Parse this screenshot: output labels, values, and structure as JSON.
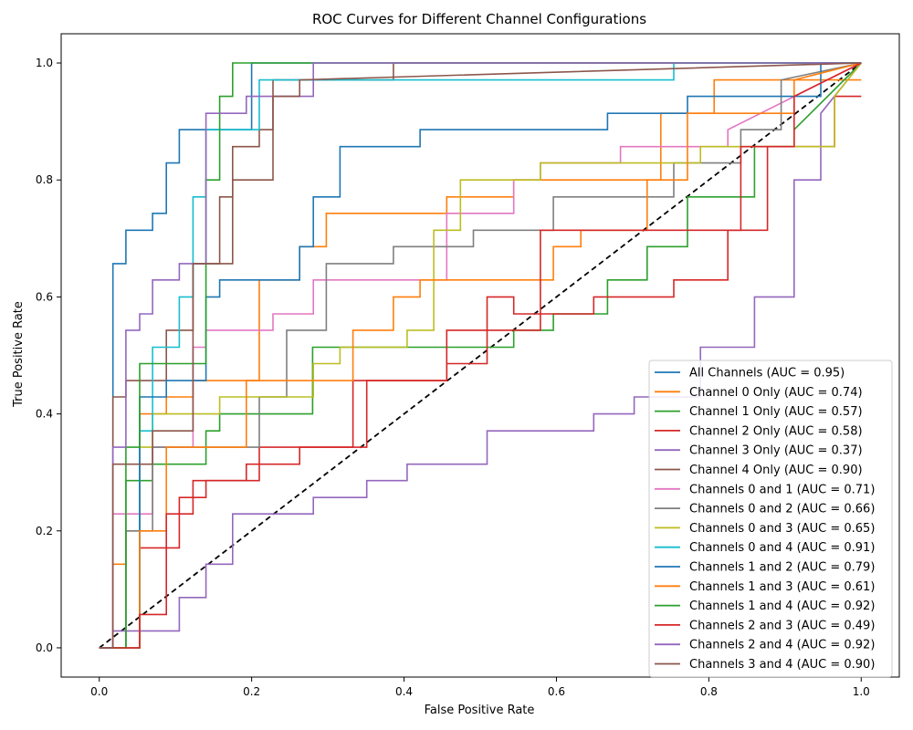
{
  "chart_data": {
    "type": "line",
    "title": "ROC Curves for Different Channel Configurations",
    "xlabel": "False Positive Rate",
    "ylabel": "True Positive Rate",
    "xlim": [
      -0.05,
      1.05
    ],
    "ylim": [
      -0.05,
      1.05
    ],
    "xticks": [
      "0.0",
      "0.2",
      "0.4",
      "0.6",
      "0.8",
      "1.0"
    ],
    "yticks": [
      "0.0",
      "0.2",
      "0.4",
      "0.6",
      "0.8",
      "1.0"
    ],
    "grid": false,
    "legend_position": "lower-right",
    "diagonal": {
      "x": [
        0,
        1
      ],
      "y": [
        0,
        1
      ],
      "color": "#000000",
      "style": "dashed"
    },
    "series": [
      {
        "name": "All Channels (AUC = 0.95)",
        "color": "#1f77b4",
        "x": [
          0,
          0.018,
          0.018,
          0.035,
          0.035,
          0.07,
          0.07,
          0.088,
          0.088,
          0.105,
          0.105,
          0.2,
          0.2,
          1.0
        ],
        "y": [
          0,
          0,
          0.657,
          0.657,
          0.714,
          0.714,
          0.743,
          0.743,
          0.829,
          0.829,
          0.886,
          0.886,
          1.0,
          1.0
        ]
      },
      {
        "name": "Channel 0 Only (AUC = 0.74)",
        "color": "#ff7f0e",
        "x": [
          0,
          0.018,
          0.018,
          0.035,
          0.035,
          0.053,
          0.053,
          0.088,
          0.088,
          0.123,
          0.123,
          0.21,
          0.21,
          0.263,
          0.263,
          0.298,
          0.298,
          0.456,
          0.456,
          0.544,
          0.544,
          0.737,
          0.737,
          0.807,
          0.807,
          1.0
        ],
        "y": [
          0,
          0,
          0.143,
          0.143,
          0.2,
          0.2,
          0.4,
          0.4,
          0.429,
          0.429,
          0.457,
          0.457,
          0.629,
          0.629,
          0.686,
          0.686,
          0.743,
          0.743,
          0.771,
          0.771,
          0.8,
          0.8,
          0.914,
          0.914,
          0.971,
          0.971
        ]
      },
      {
        "name": "Channel 1 Only (AUC = 0.57)",
        "color": "#2ca02c",
        "x": [
          0,
          0.035,
          0.035,
          0.07,
          0.07,
          0.14,
          0.14,
          0.158,
          0.158,
          0.28,
          0.28,
          0.544,
          0.544,
          0.596,
          0.596,
          0.667,
          0.667,
          0.719,
          0.719,
          0.772,
          0.772,
          0.86,
          0.86,
          0.912,
          0.912,
          1.0
        ],
        "y": [
          0,
          0,
          0.286,
          0.286,
          0.314,
          0.314,
          0.371,
          0.371,
          0.4,
          0.4,
          0.514,
          0.514,
          0.543,
          0.543,
          0.571,
          0.571,
          0.629,
          0.629,
          0.686,
          0.686,
          0.771,
          0.771,
          0.857,
          0.857,
          0.886,
          1.0
        ]
      },
      {
        "name": "Channel 2 Only (AUC = 0.58)",
        "color": "#d62728",
        "x": [
          0,
          0.053,
          0.053,
          0.105,
          0.105,
          0.14,
          0.14,
          0.21,
          0.21,
          0.333,
          0.333,
          0.456,
          0.456,
          0.509,
          0.509,
          0.544,
          0.544,
          0.649,
          0.649,
          0.754,
          0.754,
          0.825,
          0.825,
          0.877,
          0.877,
          0.965,
          0.965,
          1.0
        ],
        "y": [
          0,
          0,
          0.171,
          0.171,
          0.257,
          0.257,
          0.286,
          0.286,
          0.343,
          0.343,
          0.457,
          0.457,
          0.543,
          0.543,
          0.6,
          0.6,
          0.571,
          0.571,
          0.6,
          0.6,
          0.629,
          0.629,
          0.714,
          0.714,
          0.857,
          0.857,
          0.943,
          0.943
        ]
      },
      {
        "name": "Channel 3 Only (AUC = 0.37)",
        "color": "#9467bd",
        "x": [
          0,
          0.018,
          0.018,
          0.105,
          0.105,
          0.14,
          0.14,
          0.175,
          0.175,
          0.281,
          0.281,
          0.351,
          0.351,
          0.404,
          0.404,
          0.509,
          0.509,
          0.649,
          0.649,
          0.702,
          0.702,
          0.789,
          0.789,
          0.86,
          0.86,
          0.912,
          0.912,
          0.947,
          0.947,
          1.0
        ],
        "y": [
          0,
          0,
          0.029,
          0.029,
          0.086,
          0.086,
          0.143,
          0.143,
          0.229,
          0.229,
          0.257,
          0.257,
          0.286,
          0.286,
          0.314,
          0.314,
          0.371,
          0.371,
          0.4,
          0.4,
          0.429,
          0.429,
          0.514,
          0.514,
          0.6,
          0.6,
          0.8,
          0.8,
          0.914,
          1.0
        ]
      },
      {
        "name": "Channel 4 Only (AUC = 0.90)",
        "color": "#8c564b",
        "x": [
          0,
          0.018,
          0.018,
          0.035,
          0.035,
          0.088,
          0.088,
          0.123,
          0.123,
          0.158,
          0.158,
          0.175,
          0.175,
          0.21,
          0.21,
          0.228,
          0.228,
          0.386,
          0.386,
          1.0
        ],
        "y": [
          0,
          0,
          0.429,
          0.429,
          0.457,
          0.457,
          0.543,
          0.543,
          0.657,
          0.657,
          0.771,
          0.771,
          0.857,
          0.857,
          0.886,
          0.886,
          0.971,
          0.971,
          1.0,
          1.0
        ]
      },
      {
        "name": "Channels 0 and 1 (AUC = 0.71)",
        "color": "#e377c2",
        "x": [
          0,
          0.018,
          0.018,
          0.07,
          0.07,
          0.123,
          0.123,
          0.14,
          0.14,
          0.228,
          0.228,
          0.281,
          0.281,
          0.456,
          0.456,
          0.544,
          0.544,
          0.579,
          0.579,
          0.684,
          0.684,
          0.825,
          0.825,
          1.0
        ],
        "y": [
          0,
          0,
          0.229,
          0.229,
          0.343,
          0.343,
          0.514,
          0.514,
          0.543,
          0.543,
          0.571,
          0.571,
          0.629,
          0.629,
          0.743,
          0.743,
          0.8,
          0.8,
          0.829,
          0.829,
          0.857,
          0.857,
          0.886,
          1.0
        ]
      },
      {
        "name": "Channels 0 and 2 (AUC = 0.66)",
        "color": "#7f7f7f",
        "x": [
          0,
          0.035,
          0.035,
          0.07,
          0.07,
          0.21,
          0.21,
          0.246,
          0.246,
          0.298,
          0.298,
          0.386,
          0.386,
          0.491,
          0.491,
          0.596,
          0.596,
          0.754,
          0.754,
          0.842,
          0.842,
          0.895,
          0.895,
          1.0
        ],
        "y": [
          0,
          0,
          0.2,
          0.2,
          0.343,
          0.343,
          0.429,
          0.429,
          0.543,
          0.543,
          0.657,
          0.657,
          0.686,
          0.686,
          0.714,
          0.714,
          0.771,
          0.771,
          0.829,
          0.829,
          0.886,
          0.886,
          0.971,
          1.0
        ]
      },
      {
        "name": "Channels 0 and 3 (AUC = 0.65)",
        "color": "#bcbd22",
        "x": [
          0,
          0.053,
          0.053,
          0.07,
          0.07,
          0.158,
          0.158,
          0.281,
          0.281,
          0.316,
          0.316,
          0.404,
          0.404,
          0.439,
          0.439,
          0.474,
          0.474,
          0.579,
          0.579,
          0.789,
          0.789,
          0.965,
          0.965,
          1.0
        ],
        "y": [
          0,
          0,
          0.343,
          0.343,
          0.4,
          0.4,
          0.429,
          0.429,
          0.486,
          0.486,
          0.514,
          0.514,
          0.543,
          0.543,
          0.714,
          0.714,
          0.8,
          0.8,
          0.829,
          0.829,
          0.857,
          0.857,
          0.943,
          1.0
        ]
      },
      {
        "name": "Channels 0 and 4 (AUC = 0.91)",
        "color": "#17becf",
        "x": [
          0,
          0.053,
          0.053,
          0.07,
          0.07,
          0.105,
          0.105,
          0.123,
          0.123,
          0.14,
          0.14,
          0.21,
          0.21,
          0.754,
          0.754,
          1.0
        ],
        "y": [
          0,
          0,
          0.371,
          0.371,
          0.514,
          0.514,
          0.6,
          0.6,
          0.771,
          0.771,
          0.886,
          0.886,
          0.971,
          0.971,
          1.0,
          1.0
        ]
      },
      {
        "name": "Channels 1 and 2 (AUC = 0.79)",
        "color": "#1f77b4",
        "x": [
          0,
          0.053,
          0.053,
          0.088,
          0.088,
          0.14,
          0.14,
          0.158,
          0.158,
          0.263,
          0.263,
          0.281,
          0.281,
          0.316,
          0.316,
          0.421,
          0.421,
          0.667,
          0.667,
          0.772,
          0.772,
          0.947,
          0.947,
          1.0
        ],
        "y": [
          0,
          0,
          0.429,
          0.429,
          0.457,
          0.457,
          0.6,
          0.6,
          0.629,
          0.629,
          0.686,
          0.686,
          0.771,
          0.771,
          0.857,
          0.857,
          0.886,
          0.886,
          0.914,
          0.914,
          0.943,
          0.943,
          1.0,
          1.0
        ]
      },
      {
        "name": "Channels 1 and 3 (AUC = 0.61)",
        "color": "#ff7f0e",
        "x": [
          0,
          0.053,
          0.053,
          0.088,
          0.088,
          0.193,
          0.193,
          0.333,
          0.333,
          0.386,
          0.386,
          0.421,
          0.421,
          0.596,
          0.596,
          0.632,
          0.632,
          0.719,
          0.719,
          0.772,
          0.772,
          0.912,
          0.912,
          1.0
        ],
        "y": [
          0,
          0,
          0.2,
          0.2,
          0.343,
          0.343,
          0.457,
          0.457,
          0.543,
          0.543,
          0.6,
          0.6,
          0.629,
          0.629,
          0.686,
          0.686,
          0.714,
          0.714,
          0.8,
          0.8,
          0.914,
          0.914,
          0.971,
          1.0
        ]
      },
      {
        "name": "Channels 1 and 4 (AUC = 0.92)",
        "color": "#2ca02c",
        "x": [
          0,
          0.035,
          0.035,
          0.053,
          0.053,
          0.14,
          0.14,
          0.158,
          0.158,
          0.175,
          0.175,
          1.0
        ],
        "y": [
          0,
          0,
          0.343,
          0.343,
          0.486,
          0.486,
          0.8,
          0.8,
          0.943,
          0.943,
          1.0,
          1.0
        ]
      },
      {
        "name": "Channels 2 and 3 (AUC = 0.49)",
        "color": "#d62728",
        "x": [
          0,
          0.053,
          0.053,
          0.088,
          0.088,
          0.123,
          0.123,
          0.193,
          0.193,
          0.263,
          0.263,
          0.351,
          0.351,
          0.456,
          0.456,
          0.509,
          0.509,
          0.579,
          0.579,
          0.842,
          0.842,
          0.912,
          0.912,
          1.0
        ],
        "y": [
          0,
          0,
          0.057,
          0.057,
          0.229,
          0.229,
          0.286,
          0.286,
          0.314,
          0.314,
          0.343,
          0.343,
          0.457,
          0.457,
          0.486,
          0.486,
          0.543,
          0.543,
          0.714,
          0.714,
          0.857,
          0.857,
          0.943,
          1.0
        ]
      },
      {
        "name": "Channels 2 and 4 (AUC = 0.92)",
        "color": "#9467bd",
        "x": [
          0,
          0.018,
          0.018,
          0.035,
          0.035,
          0.053,
          0.053,
          0.07,
          0.07,
          0.105,
          0.105,
          0.14,
          0.14,
          0.193,
          0.193,
          0.281,
          0.281,
          1.0
        ],
        "y": [
          0,
          0,
          0.343,
          0.343,
          0.543,
          0.543,
          0.571,
          0.571,
          0.629,
          0.629,
          0.657,
          0.657,
          0.914,
          0.914,
          0.943,
          0.943,
          1.0,
          1.0
        ]
      },
      {
        "name": "Channels 3 and 4 (AUC = 0.90)",
        "color": "#8c564b",
        "x": [
          0,
          0.018,
          0.018,
          0.07,
          0.07,
          0.123,
          0.123,
          0.175,
          0.175,
          0.228,
          0.228,
          0.263,
          0.263,
          1.0
        ],
        "y": [
          0,
          0,
          0.314,
          0.314,
          0.371,
          0.371,
          0.657,
          0.657,
          0.8,
          0.8,
          0.943,
          0.943,
          0.971,
          1.0
        ]
      }
    ]
  }
}
